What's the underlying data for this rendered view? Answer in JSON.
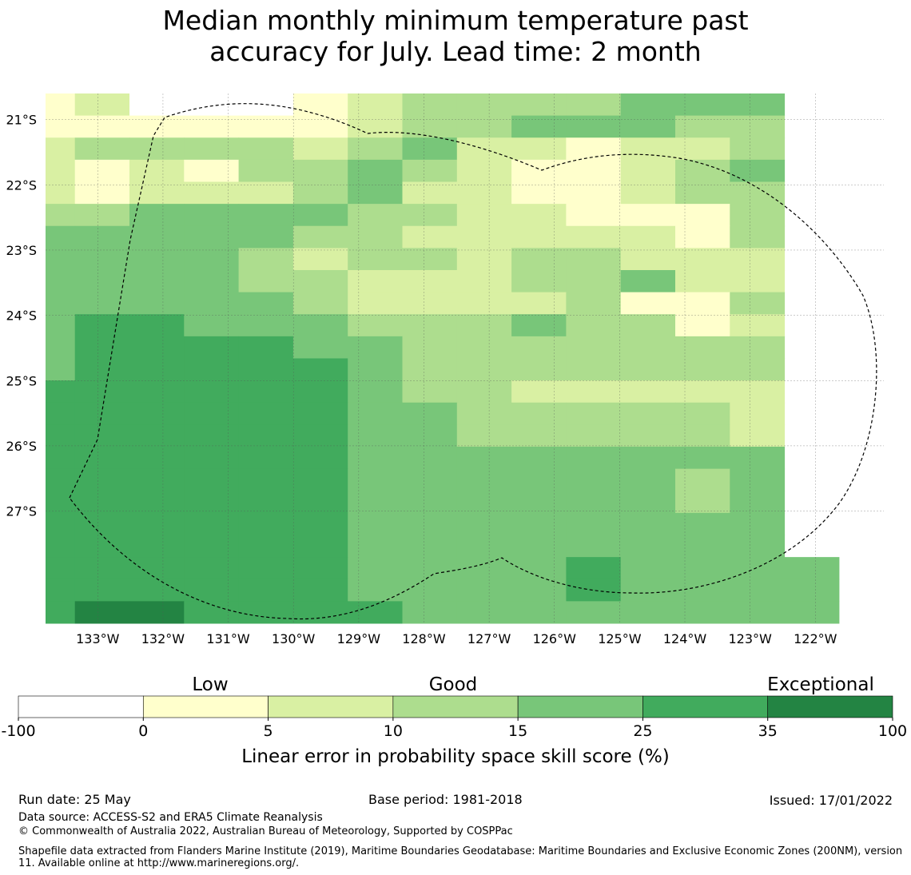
{
  "title_lines": [
    "Median monthly minimum temperature past",
    "accuracy for July. Lead time: 2 month"
  ],
  "map": {
    "lon_labels": [
      "133°W",
      "132°W",
      "131°W",
      "130°W",
      "129°W",
      "128°W",
      "127°W",
      "126°W",
      "125°W",
      "124°W",
      "123°W",
      "122°W"
    ],
    "lat_labels": [
      "21°S",
      "22°S",
      "23°S",
      "24°S",
      "25°S",
      "26°S",
      "27°S"
    ],
    "lon_range": [
      -133.8,
      -120.95
    ],
    "lat_range": [
      -20.6,
      -28.72
    ],
    "grid_rows": [
      "12000123333444",
      "11111123344433",
      "23333234221223",
      "21213343211234",
      "21222342211233",
      "33444433221113",
      "44444332222213",
      "44443233233222",
      "44443322233422",
      "44444322223113",
      "45544433343312",
      "45555443333333",
      "45555543333333",
      "55555543322222",
      "55555544333332",
      "55555544333332",
      "55555544444444",
      "55555544444434",
      "55555544444434",
      "55555544444444",
      "55555544444444",
      "555555444454444",
      "555555444454444",
      "566555544444444"
    ],
    "zones": [
      {
        "name": "White",
        "value": "-100 to 0"
      }
    ]
  },
  "legend": {
    "categories": [
      "Low",
      "Good",
      "Exceptional"
    ],
    "colors": [
      "#ffffff",
      "#ffffcc",
      "#d9f0a3",
      "#addd8e",
      "#78c679",
      "#41ab5d",
      "#238443"
    ],
    "ticks": [
      "-100",
      "0",
      "5",
      "10",
      "15",
      "25",
      "35",
      "100"
    ],
    "title": "Linear error in probability space skill score (%)"
  },
  "footer": {
    "run_date": "Run date: 25 May",
    "base_period": "Base period: 1981-2018",
    "issued": "Issued: 17/01/2022",
    "data_source": "Data source: ACCESS-S2 and ERA5 Climate Reanalysis",
    "copyright": "© Commonwealth of Australia 2022, Australian Bureau of Meteorology, Supported by COSPPac",
    "shapefile": "Shapefile data extracted from Flanders Marine Institute (2019), Maritime Boundaries Geodatabase: Maritime Boundaries and Exclusive Economic Zones (200NM), version 11. Available online at http://www.marineregions.org/."
  }
}
